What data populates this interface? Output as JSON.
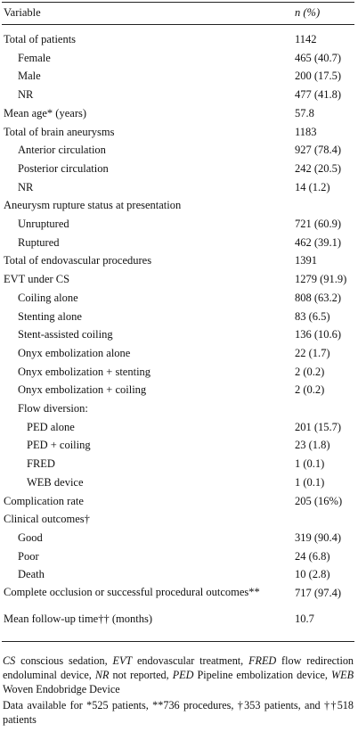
{
  "table": {
    "header": [
      "Variable",
      "n (%)"
    ],
    "rows": [
      [
        "Total of patients",
        "1142"
      ],
      [
        "Female",
        "465 (40.7)"
      ],
      [
        "Male",
        "200 (17.5)"
      ],
      [
        "NR",
        "477 (41.8)"
      ],
      [
        "Mean age* (years)",
        "57.8"
      ],
      [
        "Total of brain aneurysms",
        "1183"
      ],
      [
        "Anterior circulation",
        "927 (78.4)"
      ],
      [
        "Posterior circulation",
        "242 (20.5)"
      ],
      [
        "NR",
        "14 (1.2)"
      ],
      [
        "Aneurysm rupture status at presentation",
        ""
      ],
      [
        "Unruptured",
        "721 (60.9)"
      ],
      [
        "Ruptured",
        "462 (39.1)"
      ],
      [
        "Total of endovascular procedures",
        "1391"
      ],
      [
        "EVT under CS",
        "1279 (91.9)"
      ],
      [
        "Coiling alone",
        "808 (63.2)"
      ],
      [
        "Stenting alone",
        "83 (6.5)"
      ],
      [
        "Stent-assisted coiling",
        "136 (10.6)"
      ],
      [
        "Onyx embolization alone",
        "22 (1.7)"
      ],
      [
        "Onyx embolization + stenting",
        "2 (0.2)"
      ],
      [
        "Onyx embolization + coiling",
        "2 (0.2)"
      ],
      [
        "Flow diversion:",
        ""
      ],
      [
        "PED alone",
        "201 (15.7)"
      ],
      [
        "PED + coiling",
        "23 (1.8)"
      ],
      [
        "FRED",
        "1 (0.1)"
      ],
      [
        "WEB device",
        "1 (0.1)"
      ],
      [
        "Complication rate",
        "205 (16%)"
      ],
      [
        "Clinical outcomes†",
        ""
      ],
      [
        "Good",
        "319 (90.4)"
      ],
      [
        "Poor",
        "24 (6.8)"
      ],
      [
        "Death",
        "10 (2.8)"
      ],
      [
        "Complete occlusion or successful procedural outcomes**",
        "717 (97.4)"
      ],
      [
        "Mean follow-up time†† (months)",
        "10.7"
      ]
    ]
  },
  "footnotes": {
    "abbreviations": [
      [
        "CS",
        "conscious sedation,"
      ],
      [
        "EVT",
        "endovascular treatment,"
      ],
      [
        "FRED",
        "flow redirection endoluminal device,"
      ],
      [
        "NR",
        "not reported,"
      ],
      [
        "PED",
        "Pipeline embolization device,"
      ],
      [
        "WEB",
        "Woven Endobridge Device"
      ]
    ],
    "data_note": "Data available for *525 patients, **736 procedures, †353 patients, and ††518 patients"
  }
}
